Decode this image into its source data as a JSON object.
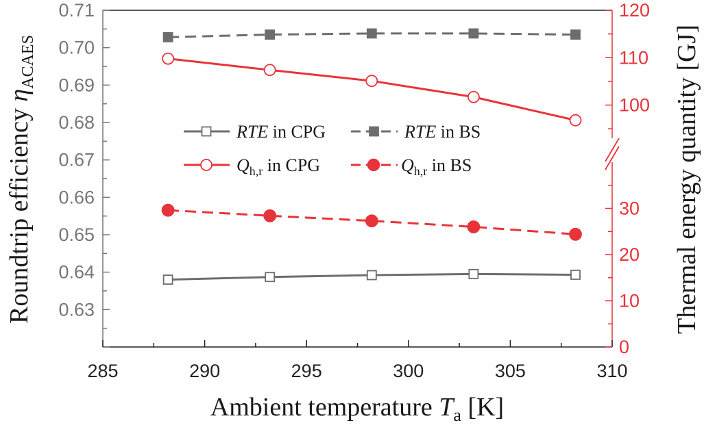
{
  "chart_data": {
    "type": "line",
    "x_axis": {
      "label_main": "Ambient temperature ",
      "label_symbol": "T",
      "label_sub": "a",
      "label_unit": " [K]",
      "range": [
        285,
        310
      ],
      "ticks": [
        285,
        290,
        295,
        300,
        305,
        310
      ],
      "tick_labels": [
        "285",
        "290",
        "295",
        "300",
        "305",
        "310"
      ]
    },
    "y_left": {
      "label_main": "Roundtrip efficiency ",
      "label_symbol": "η",
      "label_sub": "ACAES",
      "range": [
        0.62,
        0.71
      ],
      "ticks": [
        0.63,
        0.64,
        0.65,
        0.66,
        0.67,
        0.68,
        0.69,
        0.7,
        0.71
      ],
      "tick_labels": [
        "0.63",
        "0.64",
        "0.65",
        "0.66",
        "0.67",
        "0.68",
        "0.69",
        "0.70",
        "0.71"
      ]
    },
    "y_right": {
      "label": "Thermal energy quantity [GJ]",
      "broken": true,
      "lower_range": [
        0,
        40
      ],
      "upper_range": [
        93,
        120
      ],
      "ticks": [
        0,
        10,
        20,
        30,
        100,
        110,
        120
      ],
      "tick_labels": [
        "0",
        "10",
        "20",
        "30",
        "100",
        "110",
        "120"
      ]
    },
    "x": [
      288.2,
      293.2,
      298.2,
      303.2,
      308.2
    ],
    "series": [
      {
        "name": "RTE in CPG",
        "axis": "left",
        "values": [
          0.638,
          0.6387,
          0.6392,
          0.6395,
          0.6393
        ],
        "color": "#6d6d6d",
        "marker": "open-square",
        "dashed": false
      },
      {
        "name": "RTE in BS",
        "axis": "left",
        "values": [
          0.7028,
          0.7035,
          0.7038,
          0.7038,
          0.7035
        ],
        "color": "#6d6d6d",
        "marker": "filled-square",
        "dashed": true
      },
      {
        "name": "Q_h,r in CPG",
        "axis": "right",
        "values": [
          109.8,
          107.4,
          105.1,
          101.7,
          96.8
        ],
        "color": "#e8333a",
        "marker": "open-circle",
        "dashed": false
      },
      {
        "name": "Q_h,r in BS",
        "axis": "right",
        "values": [
          29.6,
          28.4,
          27.3,
          26.0,
          24.4
        ],
        "color": "#e8333a",
        "marker": "filled-circle",
        "dashed": true
      }
    ],
    "legend": {
      "placement": "center-left",
      "entries": [
        {
          "sym": "RTE",
          "text": " in CPG"
        },
        {
          "sym": "RTE",
          "text": " in BS"
        },
        {
          "sym": "Q",
          "sub": "h,r",
          "text": " in CPG"
        },
        {
          "sym": "Q",
          "sub": "h,r",
          "text": " in BS"
        }
      ]
    }
  }
}
